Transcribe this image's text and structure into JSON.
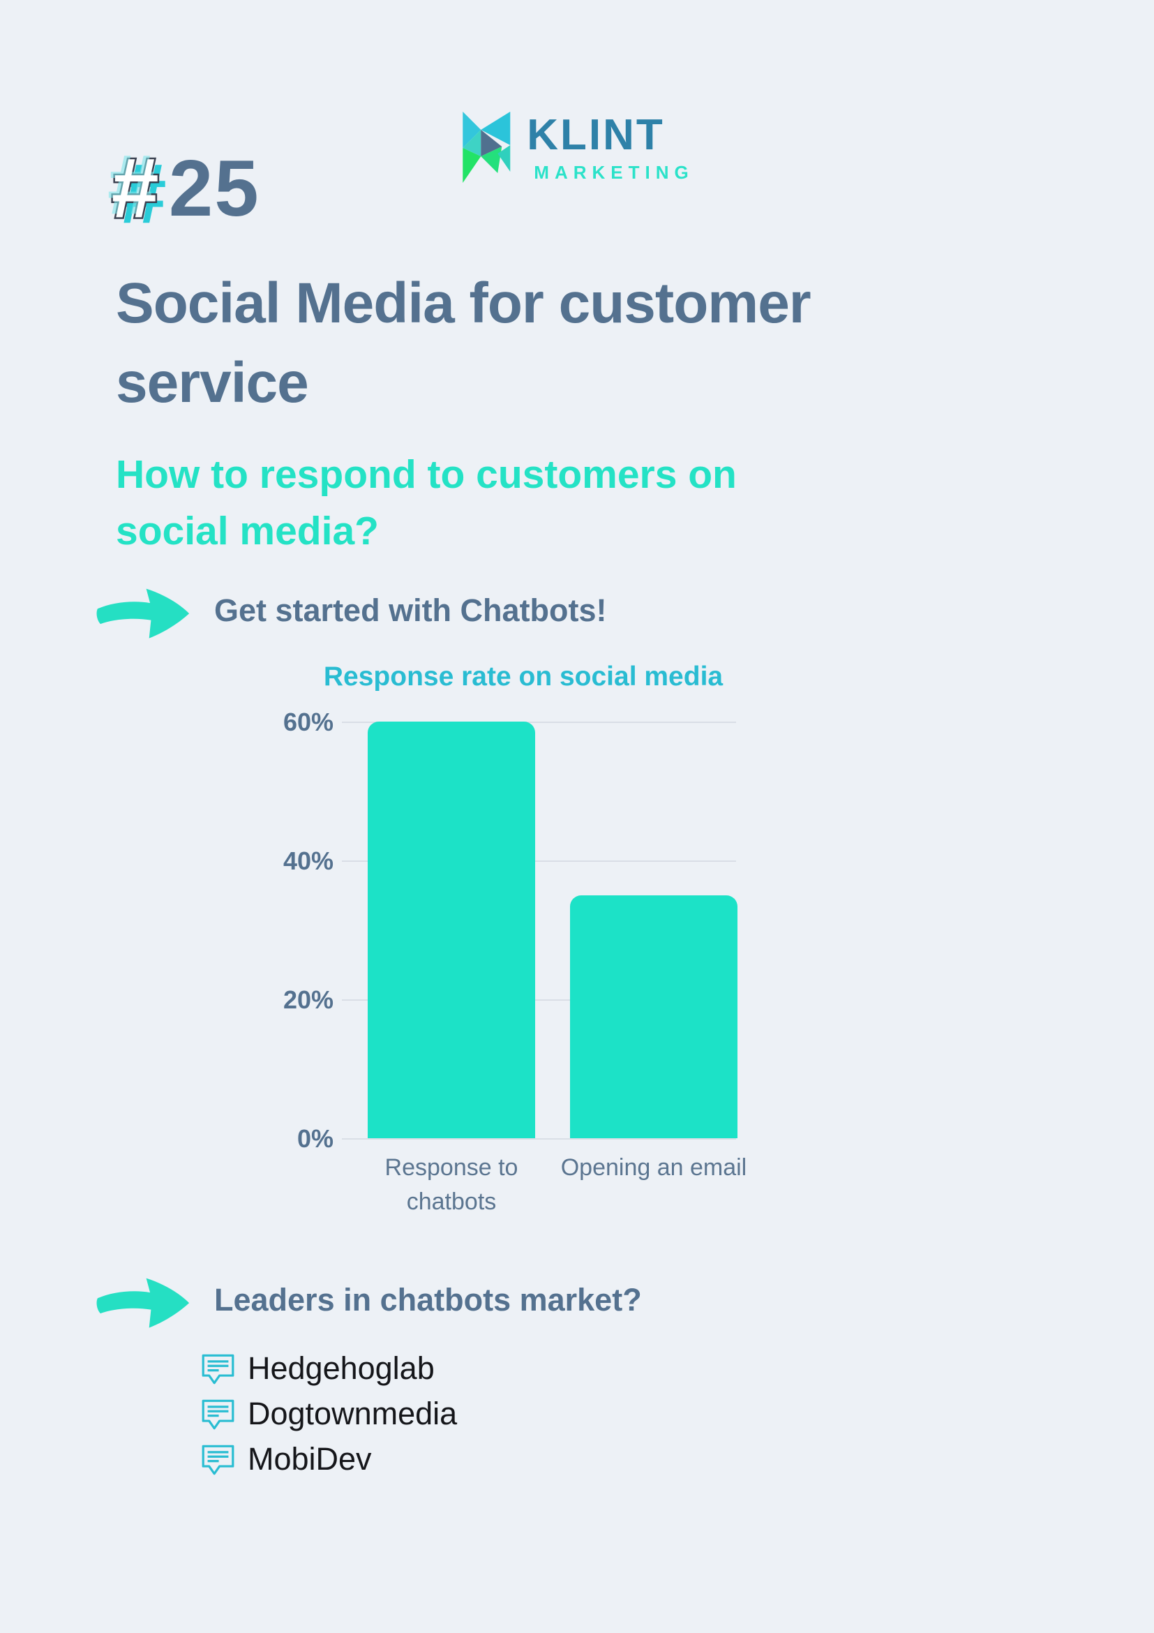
{
  "logo": {
    "brand": "KLINT",
    "subbrand": "MARKETING",
    "brand_color": "#2e81a8",
    "subbrand_color": "#2be2c9"
  },
  "header": {
    "hash": "#",
    "number": "25",
    "title": "Social Media for customer service",
    "subtitle": "How to respond to customers on social media?"
  },
  "sections": {
    "chatbots": {
      "label": "Get started with Chatbots!"
    },
    "leaders": {
      "label": "Leaders in chatbots market?",
      "items": [
        "Hedgehoglab",
        "Dogtownmedia",
        "MobiDev"
      ]
    }
  },
  "chart_data": {
    "type": "bar",
    "title": "Response rate on social media",
    "categories": [
      "Response to chatbots",
      "Opening an email"
    ],
    "values": [
      60,
      35
    ],
    "ylim": [
      0,
      60
    ],
    "yticks": [
      {
        "label": "60%",
        "value": 60
      },
      {
        "label": "40%",
        "value": 40
      },
      {
        "label": "20%",
        "value": 20
      },
      {
        "label": "0%",
        "value": 0
      }
    ],
    "grid": true,
    "legend": false,
    "bar_color": "#1ce2c7",
    "xlabel": "",
    "ylabel": ""
  },
  "colors": {
    "background": "#edf1f6",
    "slate": "#54718f",
    "teal": "#24e2c5",
    "cyan": "#29bcd2",
    "text_dark": "#15161a",
    "gridline": "#d9dee6"
  }
}
